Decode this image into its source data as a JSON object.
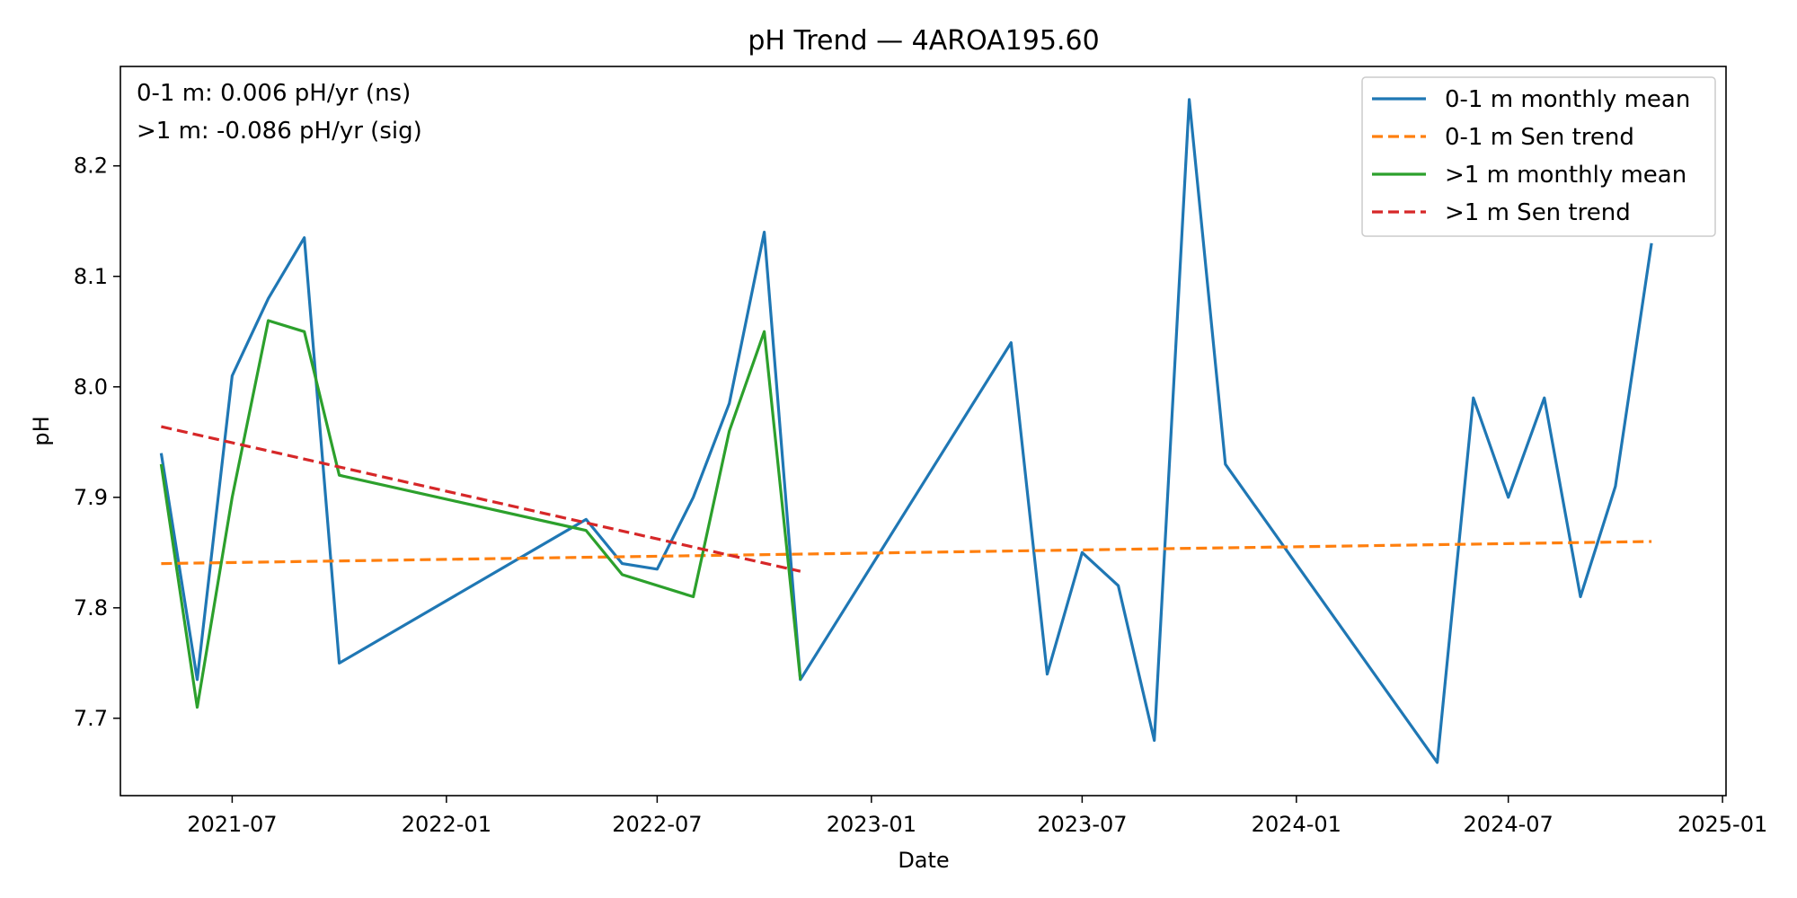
{
  "chart_data": {
    "type": "line",
    "title": "pH Trend — 4AROA195.60",
    "xlabel": "Date",
    "ylabel": "pH",
    "xlim": [
      "2021-03-27",
      "2025-01-04"
    ],
    "ylim": [
      7.63,
      8.29
    ],
    "x_ticks": [
      "2021-07",
      "2022-01",
      "2022-07",
      "2023-01",
      "2023-07",
      "2024-01",
      "2024-07",
      "2025-01"
    ],
    "y_ticks": [
      7.7,
      7.8,
      7.9,
      8.0,
      8.1,
      8.2
    ],
    "grid": false,
    "legend_position": "top-right",
    "annotations": [
      "0-1 m: 0.006 pH/yr (ns)",
      ">1 m: -0.086 pH/yr (sig)"
    ],
    "series": [
      {
        "name": "0-1 m monthly mean",
        "color": "#1f77b4",
        "dash": "solid",
        "points": [
          [
            "2021-05-01",
            7.94
          ],
          [
            "2021-06-01",
            7.735
          ],
          [
            "2021-07-01",
            8.01
          ],
          [
            "2021-08-01",
            8.08
          ],
          [
            "2021-09-01",
            8.135
          ],
          [
            "2021-10-01",
            7.75
          ],
          [
            "2022-05-01",
            7.88
          ],
          [
            "2022-06-01",
            7.84
          ],
          [
            "2022-07-01",
            7.835
          ],
          [
            "2022-08-01",
            7.9
          ],
          [
            "2022-09-01",
            7.985
          ],
          [
            "2022-10-01",
            8.14
          ],
          [
            "2022-11-01",
            7.735
          ],
          [
            "2023-05-01",
            8.04
          ],
          [
            "2023-06-01",
            7.74
          ],
          [
            "2023-07-01",
            7.85
          ],
          [
            "2023-08-01",
            7.82
          ],
          [
            "2023-09-01",
            7.68
          ],
          [
            "2023-10-01",
            8.26
          ],
          [
            "2023-11-01",
            7.93
          ],
          [
            "2024-05-01",
            7.66
          ],
          [
            "2024-06-01",
            7.99
          ],
          [
            "2024-07-01",
            7.9
          ],
          [
            "2024-08-01",
            7.99
          ],
          [
            "2024-09-01",
            7.81
          ],
          [
            "2024-10-01",
            7.91
          ],
          [
            "2024-11-01",
            8.13
          ]
        ]
      },
      {
        "name": "0-1 m Sen trend",
        "color": "#ff7f0e",
        "dash": "dashed",
        "points": [
          [
            "2021-05-01",
            7.84
          ],
          [
            "2024-11-01",
            7.86
          ]
        ]
      },
      {
        "name": ">1 m monthly mean",
        "color": "#2ca02c",
        "dash": "solid",
        "points": [
          [
            "2021-05-01",
            7.93
          ],
          [
            "2021-06-01",
            7.71
          ],
          [
            "2021-07-01",
            7.9
          ],
          [
            "2021-08-01",
            8.06
          ],
          [
            "2021-09-01",
            8.05
          ],
          [
            "2021-10-01",
            7.92
          ],
          [
            "2022-05-01",
            7.87
          ],
          [
            "2022-06-01",
            7.83
          ],
          [
            "2022-08-01",
            7.81
          ],
          [
            "2022-09-01",
            7.96
          ],
          [
            "2022-10-01",
            8.05
          ],
          [
            "2022-11-01",
            7.735
          ]
        ]
      },
      {
        "name": ">1 m Sen trend",
        "color": "#d62728",
        "dash": "dashed",
        "points": [
          [
            "2021-05-01",
            7.964
          ],
          [
            "2022-11-01",
            7.833
          ]
        ]
      }
    ]
  }
}
